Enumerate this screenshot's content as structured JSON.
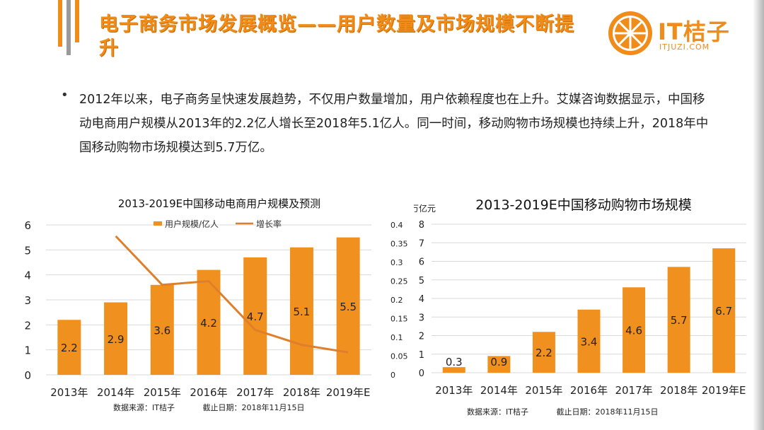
{
  "header": {
    "title": "电子商务市场发展概览——用户数量及市场规模不断提升",
    "logo_text": "IT桔子",
    "logo_url": "ITJUZI.COM"
  },
  "body": {
    "bullet": "•",
    "paragraph": "2012年以来，电子商务呈快速发展趋势，不仅用户数量增加，用户依赖程度也在上升。艾媒咨询数据显示，中国移动电商用户规模从2013年的2.2亿人增长至2018年5.1亿人。同一时间，移动购物市场规模也持续上升，2018年中国移动购物市场规模达到5.7万亿。"
  },
  "colors": {
    "accent": "#f0901e",
    "line": "#e07f2b",
    "title": "#f08c1a"
  },
  "chart_data": [
    {
      "type": "bar",
      "title": "2013-2019E中国移动电商用户规模及预测",
      "categories": [
        "2013年",
        "2014年",
        "2015年",
        "2016年",
        "2017年",
        "2018年",
        "2019年E"
      ],
      "series": [
        {
          "name": "用户规模/亿人",
          "type": "bar",
          "axis": "left",
          "values": [
            2.2,
            2.9,
            3.6,
            4.2,
            4.7,
            5.1,
            5.5
          ],
          "labels": [
            "2.2",
            "2.9",
            "3.6",
            "4.2",
            "4.7",
            "5.1",
            "5.5"
          ]
        },
        {
          "name": "增长率",
          "type": "line",
          "axis": "right",
          "values": [
            null,
            0.37,
            0.24,
            0.25,
            0.12,
            0.08,
            0.06
          ]
        }
      ],
      "ylim": [
        0,
        6
      ],
      "y_ticks": [
        "0",
        "1",
        "2",
        "3",
        "4",
        "5",
        "6"
      ],
      "y2lim": [
        0,
        0.4
      ],
      "y2_ticks": [
        "0",
        "0.05",
        "0.1",
        "0.15",
        "0.2",
        "0.25",
        "0.3",
        "0.35",
        "0.4"
      ],
      "grid": true,
      "legend": "top",
      "source": "数据来源：IT桔子",
      "date": "截止日期：2018年11月15日"
    },
    {
      "type": "bar",
      "title": "2013-2019E中国移动购物市场规模",
      "ylabel": "万亿元",
      "categories": [
        "2013年",
        "2014年",
        "2015年",
        "2016年",
        "2017年",
        "2018年",
        "2019年E"
      ],
      "series": [
        {
          "type": "bar",
          "values": [
            0.3,
            0.9,
            2.2,
            3.4,
            4.6,
            5.7,
            6.7
          ],
          "labels": [
            "0.3",
            "0.9",
            "2.2",
            "3.4",
            "4.6",
            "5.7",
            "6.7"
          ]
        }
      ],
      "ylim": [
        0,
        8
      ],
      "y_ticks": [
        "0",
        "1",
        "2",
        "3",
        "4",
        "5",
        "6",
        "7",
        "8"
      ],
      "grid": true,
      "source": "数据来源：IT桔子",
      "date": "截止日期：2018年11月15日"
    }
  ]
}
